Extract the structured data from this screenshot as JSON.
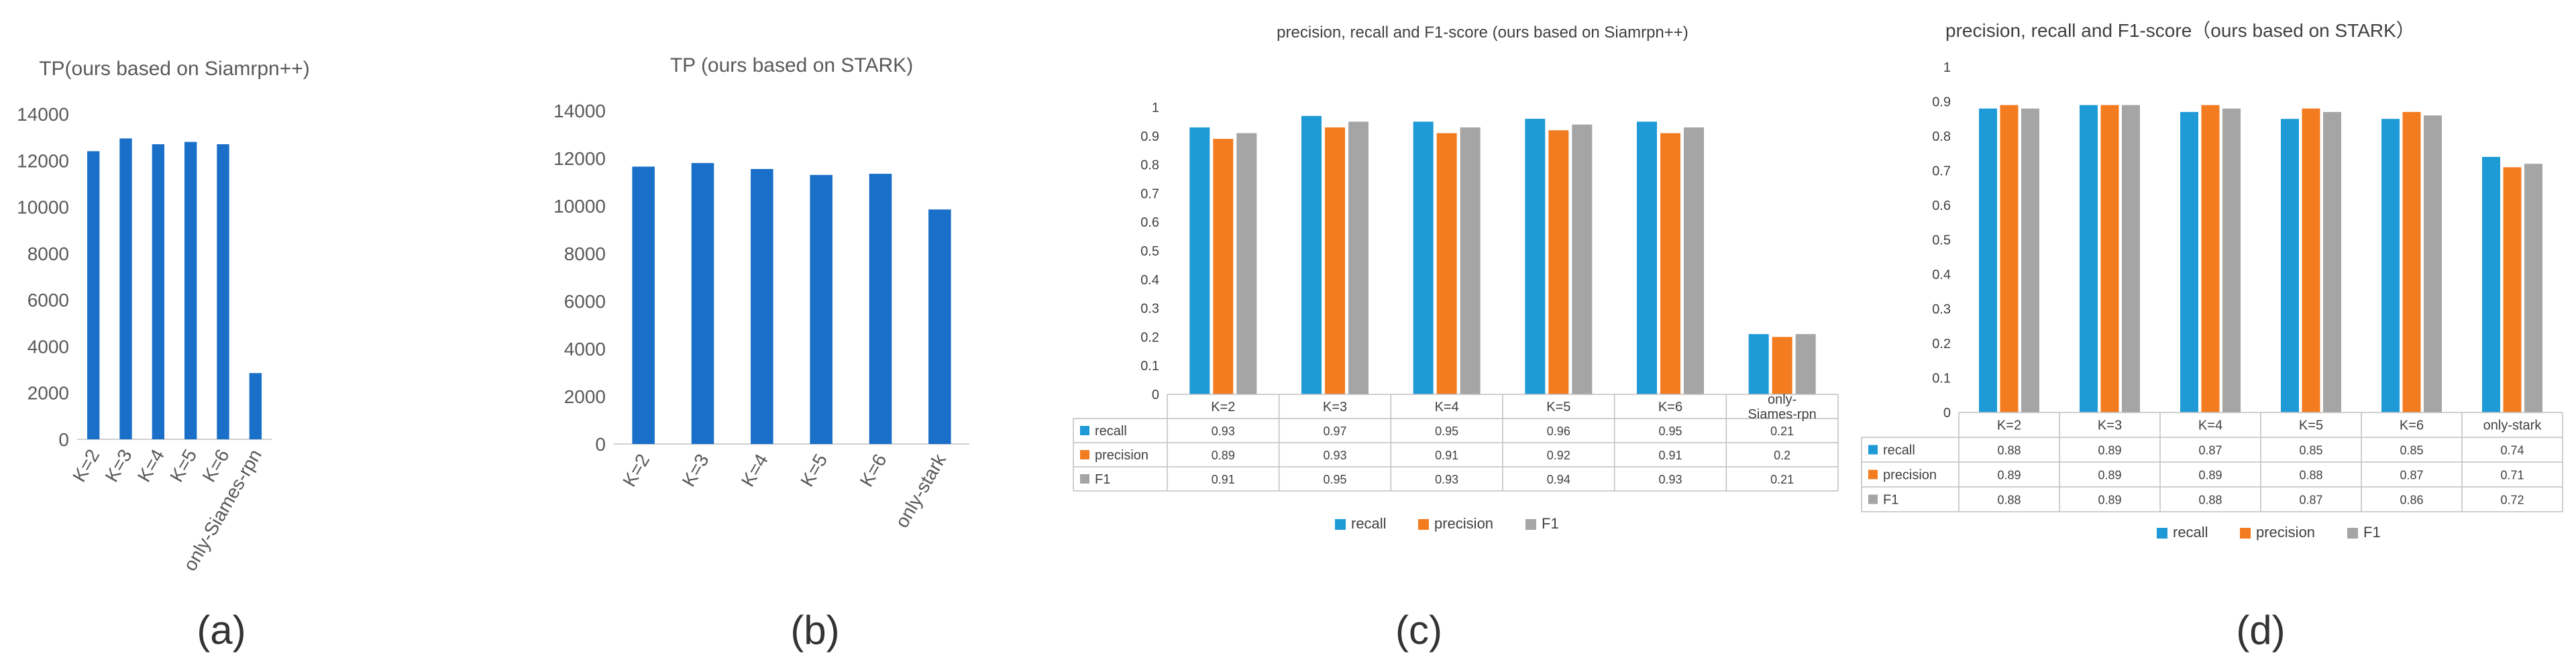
{
  "chart_data": [
    {
      "type": "bar",
      "title": "TP(ours based on Siamrpn++)",
      "categories": [
        "K=2",
        "K=3",
        "K=4",
        "K=5",
        "K=6",
        "only-Siames-rpn"
      ],
      "values": [
        12400,
        12950,
        12700,
        12800,
        12700,
        2850
      ],
      "ylim": [
        0,
        14000
      ],
      "yticks": [
        "0",
        "2000",
        "4000",
        "6000",
        "8000",
        "10000",
        "12000",
        "14000"
      ],
      "color": "#1a70c8",
      "panel_label": "(a)"
    },
    {
      "type": "bar",
      "title": "TP (ours based on STARK)",
      "categories": [
        "K=2",
        "K=3",
        "K=4",
        "K=5",
        "K=6",
        "only-stark"
      ],
      "values": [
        11650,
        11800,
        11550,
        11300,
        11350,
        9850
      ],
      "ylim": [
        0,
        14000
      ],
      "yticks": [
        "0",
        "2000",
        "4000",
        "6000",
        "8000",
        "10000",
        "12000",
        "14000"
      ],
      "color": "#1a70c8",
      "panel_label": "(b)"
    },
    {
      "type": "bar",
      "title": "precision, recall and F1-score (ours based on Siamrpn++)",
      "categories": [
        "K=2",
        "K=3",
        "K=4",
        "K=5",
        "K=6",
        "only-Siames-rpn"
      ],
      "category_lines": [
        [
          "K=2"
        ],
        [
          "K=3"
        ],
        [
          "K=4"
        ],
        [
          "K=5"
        ],
        [
          "K=6"
        ],
        [
          "only-",
          "Siames-rpn"
        ]
      ],
      "series": [
        {
          "name": "recall",
          "color": "#1e9bd7",
          "values": [
            0.93,
            0.97,
            0.95,
            0.96,
            0.95,
            0.21
          ],
          "labels": [
            "0.93",
            "0.97",
            "0.95",
            "0.96",
            "0.95",
            "0.21"
          ]
        },
        {
          "name": "precision",
          "color": "#f47c20",
          "values": [
            0.89,
            0.93,
            0.91,
            0.92,
            0.91,
            0.2
          ],
          "labels": [
            "0.89",
            "0.93",
            "0.91",
            "0.92",
            "0.91",
            "0.2"
          ]
        },
        {
          "name": "F1",
          "color": "#a5a5a5",
          "values": [
            0.91,
            0.95,
            0.93,
            0.94,
            0.93,
            0.21
          ],
          "labels": [
            "0.91",
            "0.95",
            "0.93",
            "0.94",
            "0.93",
            "0.21"
          ]
        }
      ],
      "ylim": [
        0,
        1
      ],
      "yticks": [
        "0",
        "0.1",
        "0.2",
        "0.3",
        "0.4",
        "0.5",
        "0.6",
        "0.7",
        "0.8",
        "0.9",
        "1"
      ],
      "panel_label": "(c)"
    },
    {
      "type": "bar",
      "title": "precision, recall and F1-score（ours based on STARK）",
      "categories": [
        "K=2",
        "K=3",
        "K=4",
        "K=5",
        "K=6",
        "only-stark"
      ],
      "category_lines": [
        [
          "K=2"
        ],
        [
          "K=3"
        ],
        [
          "K=4"
        ],
        [
          "K=5"
        ],
        [
          "K=6"
        ],
        [
          "only-stark"
        ]
      ],
      "series": [
        {
          "name": "recall",
          "color": "#1e9bd7",
          "values": [
            0.88,
            0.89,
            0.87,
            0.85,
            0.85,
            0.74
          ],
          "labels": [
            "0.88",
            "0.89",
            "0.87",
            "0.85",
            "0.85",
            "0.74"
          ]
        },
        {
          "name": "precision",
          "color": "#f47c20",
          "values": [
            0.89,
            0.89,
            0.89,
            0.88,
            0.87,
            0.71
          ],
          "labels": [
            "0.89",
            "0.89",
            "0.89",
            "0.88",
            "0.87",
            "0.71"
          ]
        },
        {
          "name": "F1",
          "color": "#a5a5a5",
          "values": [
            0.88,
            0.89,
            0.88,
            0.87,
            0.86,
            0.72
          ],
          "labels": [
            "0.88",
            "0.89",
            "0.88",
            "0.87",
            "0.86",
            "0.72"
          ]
        }
      ],
      "ylim": [
        0,
        1
      ],
      "yticks": [
        "0",
        "0.1",
        "0.2",
        "0.3",
        "0.4",
        "0.5",
        "0.6",
        "0.7",
        "0.8",
        "0.9",
        "1"
      ],
      "panel_label": "(d)"
    }
  ]
}
